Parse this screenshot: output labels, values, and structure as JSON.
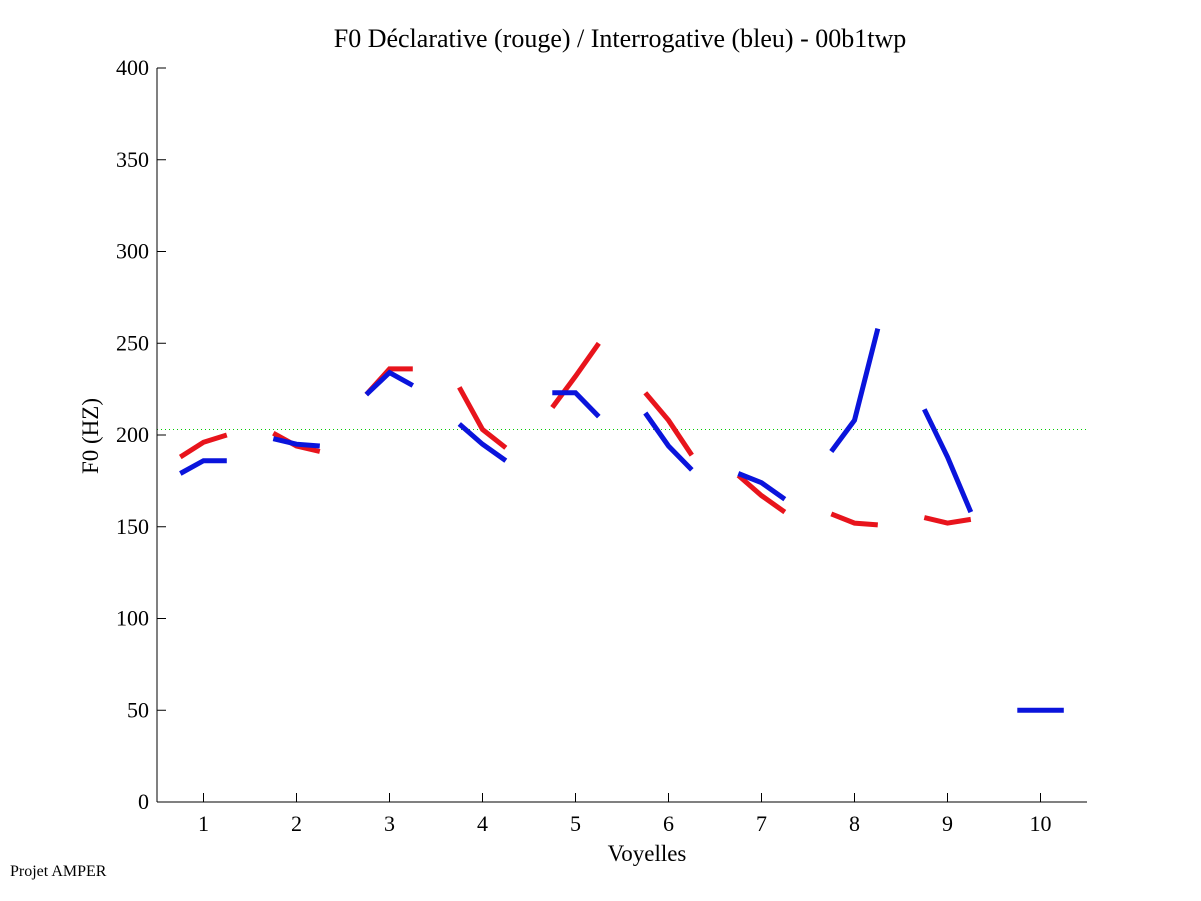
{
  "footer": "Projet AMPER",
  "chart_data": {
    "type": "line",
    "title": "F0 Déclarative (rouge) / Interrogative (bleu) - 00b1twp",
    "xlabel": "Voyelles",
    "ylabel": "F0 (HZ)",
    "xlim": [
      0.5,
      10.5
    ],
    "ylim": [
      0,
      400
    ],
    "xticks": [
      "1",
      "2",
      "3",
      "4",
      "5",
      "6",
      "7",
      "8",
      "9",
      "10"
    ],
    "yticks": [
      "0",
      "50",
      "100",
      "150",
      "200",
      "250",
      "300",
      "350",
      "400"
    ],
    "reference_line": {
      "value": 203,
      "color": "#00cc00",
      "style": "dotted"
    },
    "series": [
      {
        "name": "Déclarative (rouge)",
        "color": "#e8141c",
        "segments": [
          {
            "x": [
              0.75,
              1.0,
              1.25
            ],
            "y": [
              188,
              196,
              200
            ]
          },
          {
            "x": [
              1.75,
              2.0,
              2.25
            ],
            "y": [
              201,
              194,
              191
            ]
          },
          {
            "x": [
              2.75,
              3.0,
              3.25
            ],
            "y": [
              222,
              236,
              236
            ]
          },
          {
            "x": [
              3.75,
              4.0,
              4.25
            ],
            "y": [
              226,
              203,
              193
            ]
          },
          {
            "x": [
              4.75,
              5.0,
              5.25
            ],
            "y": [
              215,
              232,
              250
            ]
          },
          {
            "x": [
              5.75,
              6.0,
              6.25
            ],
            "y": [
              223,
              208,
              189
            ]
          },
          {
            "x": [
              6.75,
              7.0,
              7.25
            ],
            "y": [
              178,
              167,
              158
            ]
          },
          {
            "x": [
              7.75,
              8.0,
              8.25
            ],
            "y": [
              157,
              152,
              151
            ]
          },
          {
            "x": [
              8.75,
              9.0,
              9.25
            ],
            "y": [
              155,
              152,
              154
            ]
          }
        ]
      },
      {
        "name": "Interrogative (bleu)",
        "color": "#0a14dc",
        "segments": [
          {
            "x": [
              0.75,
              1.0,
              1.25
            ],
            "y": [
              179,
              186,
              186
            ]
          },
          {
            "x": [
              1.75,
              2.0,
              2.25
            ],
            "y": [
              198,
              195,
              194
            ]
          },
          {
            "x": [
              2.75,
              3.0,
              3.25
            ],
            "y": [
              222,
              234,
              227
            ]
          },
          {
            "x": [
              3.75,
              4.0,
              4.25
            ],
            "y": [
              206,
              195,
              186
            ]
          },
          {
            "x": [
              4.75,
              5.0,
              5.25
            ],
            "y": [
              223,
              223,
              210
            ]
          },
          {
            "x": [
              5.75,
              6.0,
              6.25
            ],
            "y": [
              212,
              194,
              181
            ]
          },
          {
            "x": [
              6.75,
              7.0,
              7.25
            ],
            "y": [
              179,
              174,
              165
            ]
          },
          {
            "x": [
              7.75,
              8.0,
              8.25
            ],
            "y": [
              191,
              208,
              258
            ]
          },
          {
            "x": [
              8.75,
              9.0,
              9.25
            ],
            "y": [
              214,
              188,
              158
            ]
          },
          {
            "x": [
              9.75,
              10.0,
              10.25
            ],
            "y": [
              50,
              50,
              50
            ]
          }
        ]
      }
    ]
  }
}
